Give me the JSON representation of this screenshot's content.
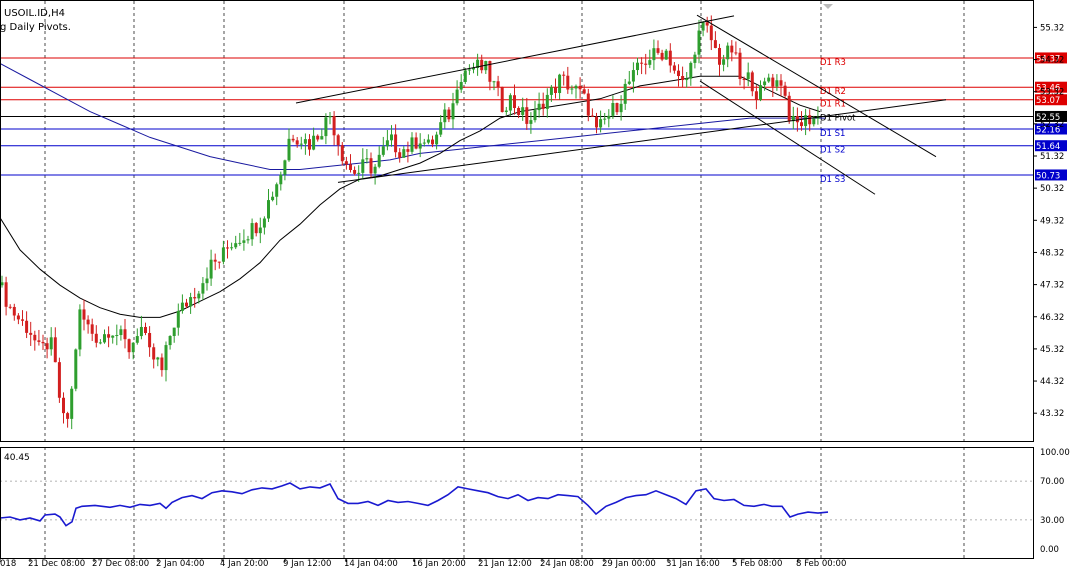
{
  "header": {
    "symbol_line": "USOIL.ID,H4",
    "indicator_line": "g Daily Pivots."
  },
  "rsi": {
    "value_label": "40.45",
    "scale_labels": [
      "100.00",
      "70.00",
      "30.00",
      "0.00"
    ]
  },
  "chart_data": [
    {
      "type": "candlestick",
      "title": "USOIL.ID,H4",
      "subtitle": "g Daily Pivots.",
      "y_ticks": [
        55.32,
        54.32,
        53.32,
        52.32,
        51.32,
        50.32,
        49.32,
        48.32,
        47.32,
        46.32,
        45.32,
        44.32,
        43.32
      ],
      "ylim": [
        42.72,
        55.72
      ],
      "x_tick_labels": [
        "018",
        "21 Dec 08:00",
        "27 Dec 08:00",
        "2 Jan 04:00",
        "4 Jan 20:00",
        "9 Jan 12:00",
        "14 Jan 04:00",
        "16 Jan 20:00",
        "21 Jan 12:00",
        "24 Jan 08:00",
        "29 Jan 00:00",
        "31 Jan 16:00",
        "5 Feb 08:00",
        "8 Feb 00:00"
      ],
      "pivots": [
        {
          "name": "D1 R3",
          "value": 54.37,
          "color": "#dd0000"
        },
        {
          "name": "D1 R2",
          "value": 53.46,
          "color": "#dd0000"
        },
        {
          "name": "D1 R1",
          "value": 53.07,
          "color": "#dd0000"
        },
        {
          "name": "D1 Pivot",
          "value": 52.55,
          "color": "#000000"
        },
        {
          "name": "D1 S1",
          "value": 52.16,
          "color": "#0000cc"
        },
        {
          "name": "D1 S2",
          "value": 51.64,
          "color": "#0000cc"
        },
        {
          "name": "D1 S3",
          "value": 50.73,
          "color": "#0000cc"
        }
      ],
      "anchors": [
        [
          0,
          47.3
        ],
        [
          10,
          46.6
        ],
        [
          20,
          46.2
        ],
        [
          30,
          45.9
        ],
        [
          40,
          45.2
        ],
        [
          50,
          45.6
        ],
        [
          55,
          44.8
        ],
        [
          60,
          43.7
        ],
        [
          64,
          43.0
        ],
        [
          68,
          43.2
        ],
        [
          74,
          44.5
        ],
        [
          78,
          46.5
        ],
        [
          82,
          46.3
        ],
        [
          90,
          45.9
        ],
        [
          100,
          45.6
        ],
        [
          110,
          46.0
        ],
        [
          120,
          45.7
        ],
        [
          130,
          45.3
        ],
        [
          140,
          46.1
        ],
        [
          150,
          45.1
        ],
        [
          158,
          44.9
        ],
        [
          162,
          44.6
        ],
        [
          166,
          45.2
        ],
        [
          172,
          46.0
        ],
        [
          180,
          46.5
        ],
        [
          190,
          46.9
        ],
        [
          200,
          47.3
        ],
        [
          210,
          47.9
        ],
        [
          220,
          48.1
        ],
        [
          230,
          48.6
        ],
        [
          240,
          48.8
        ],
        [
          250,
          49.0
        ],
        [
          260,
          49.3
        ],
        [
          270,
          50.0
        ],
        [
          278,
          50.6
        ],
        [
          284,
          51.1
        ],
        [
          288,
          51.8
        ],
        [
          292,
          52.0
        ],
        [
          300,
          51.9
        ],
        [
          310,
          51.7
        ],
        [
          320,
          52.1
        ],
        [
          330,
          52.6
        ],
        [
          336,
          52.0
        ],
        [
          342,
          51.4
        ],
        [
          350,
          50.9
        ],
        [
          358,
          50.8
        ],
        [
          366,
          51.1
        ],
        [
          374,
          50.9
        ],
        [
          382,
          51.4
        ],
        [
          390,
          51.8
        ],
        [
          400,
          51.5
        ],
        [
          410,
          51.6
        ],
        [
          420,
          51.9
        ],
        [
          428,
          51.6
        ],
        [
          436,
          51.9
        ],
        [
          444,
          52.5
        ],
        [
          452,
          52.7
        ],
        [
          458,
          53.8
        ],
        [
          466,
          54.0
        ],
        [
          476,
          54.1
        ],
        [
          486,
          54.0
        ],
        [
          494,
          53.5
        ],
        [
          502,
          52.9
        ],
        [
          510,
          53.1
        ],
        [
          520,
          52.7
        ],
        [
          528,
          52.4
        ],
        [
          536,
          52.6
        ],
        [
          544,
          53.1
        ],
        [
          552,
          53.3
        ],
        [
          560,
          53.7
        ],
        [
          566,
          53.6
        ],
        [
          574,
          53.4
        ],
        [
          582,
          53.2
        ],
        [
          590,
          52.7
        ],
        [
          596,
          52.0
        ],
        [
          604,
          52.4
        ],
        [
          612,
          52.7
        ],
        [
          620,
          53.1
        ],
        [
          626,
          53.5
        ],
        [
          634,
          53.8
        ],
        [
          642,
          54.2
        ],
        [
          650,
          54.4
        ],
        [
          658,
          54.5
        ],
        [
          666,
          54.6
        ],
        [
          672,
          54.2
        ],
        [
          678,
          53.7
        ],
        [
          684,
          53.5
        ],
        [
          690,
          54.0
        ],
        [
          696,
          54.9
        ],
        [
          702,
          55.3
        ],
        [
          708,
          55.2
        ],
        [
          714,
          54.7
        ],
        [
          720,
          54.3
        ],
        [
          728,
          54.5
        ],
        [
          734,
          54.7
        ],
        [
          738,
          53.8
        ],
        [
          744,
          53.6
        ],
        [
          750,
          53.8
        ],
        [
          756,
          53.3
        ],
        [
          762,
          53.3
        ],
        [
          768,
          53.8
        ],
        [
          776,
          53.6
        ],
        [
          782,
          53.7
        ],
        [
          786,
          53.0
        ],
        [
          792,
          52.3
        ],
        [
          798,
          52.3
        ],
        [
          804,
          52.4
        ],
        [
          810,
          52.5
        ],
        [
          818,
          52.5
        ]
      ],
      "ma_fast": [
        [
          0,
          49.4
        ],
        [
          20,
          48.4
        ],
        [
          40,
          47.8
        ],
        [
          60,
          47.3
        ],
        [
          80,
          46.9
        ],
        [
          100,
          46.6
        ],
        [
          120,
          46.4
        ],
        [
          140,
          46.3
        ],
        [
          160,
          46.3
        ],
        [
          180,
          46.5
        ],
        [
          200,
          46.8
        ],
        [
          220,
          47.1
        ],
        [
          240,
          47.5
        ],
        [
          260,
          48.0
        ],
        [
          280,
          48.7
        ],
        [
          300,
          49.2
        ],
        [
          320,
          49.8
        ],
        [
          340,
          50.3
        ],
        [
          360,
          50.6
        ],
        [
          380,
          50.7
        ],
        [
          400,
          50.9
        ],
        [
          420,
          51.1
        ],
        [
          440,
          51.4
        ],
        [
          460,
          51.8
        ],
        [
          480,
          52.1
        ],
        [
          500,
          52.5
        ],
        [
          520,
          52.7
        ],
        [
          540,
          52.8
        ],
        [
          560,
          52.9
        ],
        [
          580,
          53.0
        ],
        [
          600,
          53.1
        ],
        [
          620,
          53.3
        ],
        [
          640,
          53.5
        ],
        [
          660,
          53.6
        ],
        [
          680,
          53.7
        ],
        [
          700,
          53.8
        ],
        [
          720,
          53.8
        ],
        [
          740,
          53.8
        ],
        [
          760,
          53.5
        ],
        [
          780,
          53.2
        ],
        [
          800,
          52.9
        ],
        [
          820,
          52.7
        ]
      ],
      "ma_slow": [
        [
          0,
          54.2
        ],
        [
          30,
          53.7
        ],
        [
          60,
          53.2
        ],
        [
          90,
          52.7
        ],
        [
          120,
          52.3
        ],
        [
          150,
          51.9
        ],
        [
          180,
          51.6
        ],
        [
          210,
          51.3
        ],
        [
          240,
          51.1
        ],
        [
          270,
          50.9
        ],
        [
          300,
          50.9
        ],
        [
          330,
          51.0
        ],
        [
          360,
          51.1
        ],
        [
          390,
          51.2
        ],
        [
          420,
          51.4
        ],
        [
          450,
          51.5
        ],
        [
          480,
          51.6
        ],
        [
          510,
          51.7
        ],
        [
          540,
          51.8
        ],
        [
          570,
          51.9
        ],
        [
          600,
          52.0
        ],
        [
          630,
          52.1
        ],
        [
          660,
          52.2
        ],
        [
          690,
          52.3
        ],
        [
          720,
          52.4
        ],
        [
          750,
          52.5
        ],
        [
          780,
          52.5
        ],
        [
          810,
          52.5
        ],
        [
          825,
          52.5
        ]
      ],
      "trendlines": [
        {
          "from": [
            296,
            52.97
          ],
          "to": [
            734,
            55.68
          ],
          "color": "#000000"
        },
        {
          "from": [
            338,
            50.5
          ],
          "to": [
            946,
            53.07
          ],
          "color": "#000000"
        },
        {
          "from": [
            697,
            55.7
          ],
          "to": [
            936,
            51.3
          ],
          "color": "#000000"
        },
        {
          "from": [
            700,
            53.65
          ],
          "to": [
            875,
            50.13
          ],
          "color": "#000000"
        }
      ]
    },
    {
      "type": "line",
      "title": "RSI",
      "ylim": [
        0,
        100
      ],
      "y_ticks": [
        100,
        70,
        30,
        0
      ],
      "values": [
        [
          0,
          32
        ],
        [
          10,
          33
        ],
        [
          20,
          30
        ],
        [
          30,
          32
        ],
        [
          40,
          29
        ],
        [
          45,
          35
        ],
        [
          55,
          36
        ],
        [
          60,
          33
        ],
        [
          66,
          24
        ],
        [
          72,
          28
        ],
        [
          76,
          42
        ],
        [
          82,
          44
        ],
        [
          95,
          45
        ],
        [
          110,
          43
        ],
        [
          120,
          45
        ],
        [
          130,
          43
        ],
        [
          140,
          46
        ],
        [
          150,
          45
        ],
        [
          160,
          47
        ],
        [
          166,
          42
        ],
        [
          172,
          48
        ],
        [
          182,
          53
        ],
        [
          192,
          55
        ],
        [
          202,
          52
        ],
        [
          212,
          58
        ],
        [
          222,
          60
        ],
        [
          232,
          59
        ],
        [
          242,
          57
        ],
        [
          252,
          61
        ],
        [
          262,
          63
        ],
        [
          272,
          62
        ],
        [
          282,
          65
        ],
        [
          290,
          68
        ],
        [
          300,
          62
        ],
        [
          310,
          64
        ],
        [
          320,
          63
        ],
        [
          330,
          67
        ],
        [
          338,
          52
        ],
        [
          348,
          47
        ],
        [
          358,
          47
        ],
        [
          368,
          49
        ],
        [
          378,
          45
        ],
        [
          388,
          50
        ],
        [
          398,
          48
        ],
        [
          408,
          49
        ],
        [
          418,
          47
        ],
        [
          428,
          45
        ],
        [
          438,
          50
        ],
        [
          448,
          56
        ],
        [
          458,
          64
        ],
        [
          468,
          62
        ],
        [
          478,
          60
        ],
        [
          488,
          58
        ],
        [
          498,
          54
        ],
        [
          508,
          52
        ],
        [
          518,
          56
        ],
        [
          528,
          50
        ],
        [
          538,
          53
        ],
        [
          548,
          52
        ],
        [
          558,
          56
        ],
        [
          568,
          55
        ],
        [
          578,
          54
        ],
        [
          588,
          45
        ],
        [
          596,
          36
        ],
        [
          606,
          44
        ],
        [
          616,
          48
        ],
        [
          626,
          53
        ],
        [
          636,
          55
        ],
        [
          646,
          56
        ],
        [
          656,
          60
        ],
        [
          666,
          56
        ],
        [
          676,
          52
        ],
        [
          686,
          46
        ],
        [
          696,
          60
        ],
        [
          706,
          62
        ],
        [
          714,
          52
        ],
        [
          724,
          50
        ],
        [
          734,
          51
        ],
        [
          744,
          45
        ],
        [
          754,
          44
        ],
        [
          764,
          46
        ],
        [
          772,
          44
        ],
        [
          782,
          44
        ],
        [
          790,
          33
        ],
        [
          798,
          36
        ],
        [
          808,
          38
        ],
        [
          818,
          37
        ],
        [
          828,
          38
        ]
      ]
    }
  ]
}
